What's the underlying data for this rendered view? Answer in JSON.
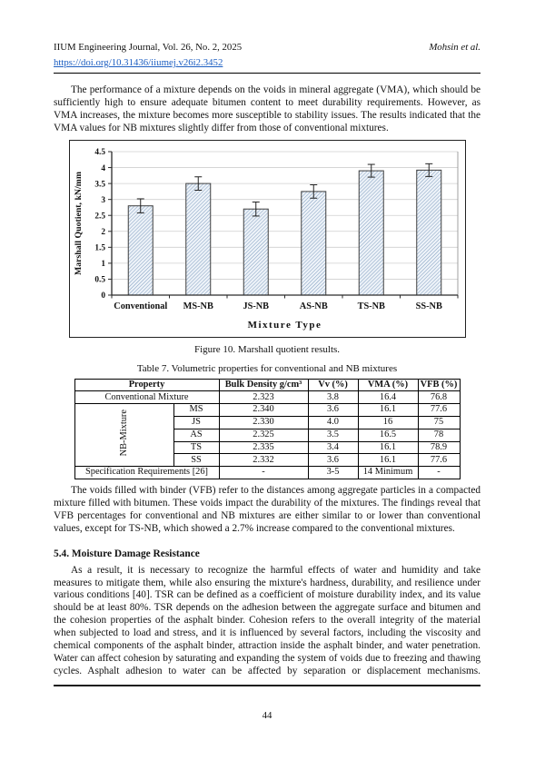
{
  "header": {
    "journal": "IIUM Engineering Journal, Vol. 26, No. 2, 2025",
    "author": "Mohsin et al.",
    "doi": "https://doi.org/10.31436/iiumej.v26i2.3452"
  },
  "paragraphs": {
    "p1": "The performance of a mixture depends on the voids in mineral aggregate (VMA), which should be sufficiently high to ensure adequate bitumen content to meet durability requirements. However, as VMA increases, the mixture becomes more susceptible to stability issues. The results indicated that the VMA values for NB mixtures slightly differ from those of conventional mixtures.",
    "p2": "The voids filled with binder (VFB) refer to the distances among aggregate particles in a compacted mixture filled with bitumen. These voids impact the durability of the mixtures. The findings reveal that VFB percentages for conventional and NB mixtures are either similar to or lower than conventional values, except for TS-NB, which showed a 2.7% increase compared to the conventional mixtures."
  },
  "figure": {
    "caption": "Figure 10. Marshall quotient results."
  },
  "chart_data": {
    "type": "bar",
    "categories": [
      "Conventional",
      "MS-NB",
      "JS-NB",
      "AS-NB",
      "TS-NB",
      "SS-NB"
    ],
    "values": [
      2.8,
      3.5,
      2.7,
      3.25,
      3.9,
      3.92
    ],
    "errors": [
      0.22,
      0.21,
      0.22,
      0.21,
      0.2,
      0.2
    ],
    "title": "",
    "xlabel": "Mixture Type",
    "ylabel": "Marshall Quotient, kN/mm",
    "ylim": [
      0,
      4.5
    ],
    "ytick_step": 0.5,
    "grid": true,
    "legend": "none",
    "bar_fill": "#eef3f9",
    "bar_hatch": "#7d9cbe",
    "bar_border": "#3f3f3f",
    "grid_color": "#cfcfcf",
    "axis_color": "#2b2b2b"
  },
  "table": {
    "title": "Table 7. Volumetric properties for conventional and NB mixtures",
    "headers": [
      "Property",
      "Bulk Density g/cm³",
      "Vv (%)",
      "VMA (%)",
      "VFB (%)"
    ],
    "conventional_row": {
      "label": "Conventional Mixture",
      "values": [
        "2.323",
        "3.8",
        "16.4",
        "76.8"
      ]
    },
    "nb_group_label": "NB-Mixture",
    "nb_rows": [
      {
        "code": "MS",
        "values": [
          "2.340",
          "3.6",
          "16.1",
          "77.6"
        ]
      },
      {
        "code": "JS",
        "values": [
          "2.330",
          "4.0",
          "16",
          "75"
        ]
      },
      {
        "code": "AS",
        "values": [
          "2.325",
          "3.5",
          "16.5",
          "78"
        ]
      },
      {
        "code": "TS",
        "values": [
          "2.335",
          "3.4",
          "16.1",
          "78.9"
        ]
      },
      {
        "code": "SS",
        "values": [
          "2.332",
          "3.6",
          "16.1",
          "77.6"
        ]
      }
    ],
    "spec_row": {
      "label": "Specification Requirements [26]",
      "values": [
        "-",
        "3-5",
        "14 Minimum",
        "-"
      ]
    }
  },
  "section": {
    "heading": "5.4. Moisture Damage Resistance",
    "paragraph": "As a result, it is necessary to recognize the harmful effects of water and humidity and take measures to mitigate them, while also ensuring the mixture's hardness, durability, and resilience under various conditions [40]. TSR can be defined as a coefficient of moisture durability index, and its value should be at least 80%. TSR depends on the adhesion between the aggregate surface and bitumen and the cohesion properties of the asphalt binder. Cohesion refers to the overall integrity of the material when subjected to load and stress, and it is influenced by several factors, including the viscosity and chemical components of the asphalt binder, attraction inside the asphalt binder, and water penetration. Water can affect cohesion by saturating and expanding the system of voids due to freezing and thawing cycles. Asphalt adhesion to water can be affected by separation or displacement mechanisms."
  },
  "footer": {
    "page_number": "44"
  }
}
